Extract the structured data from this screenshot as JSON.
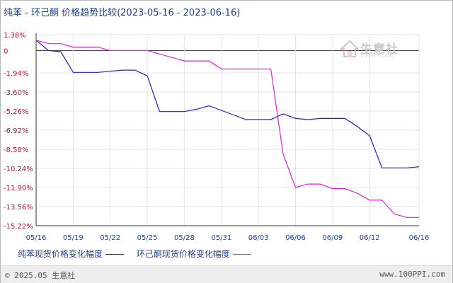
{
  "title": "纯苯 - 环己酮 价格趋势比较(2023-05-16 - 2023-06-16)",
  "watermark": {
    "brand": "生意社",
    "domain": "100PPI.COM"
  },
  "legend": {
    "items": [
      {
        "label": "纯苯现货价格变化幅度",
        "color": "#2020c8"
      },
      {
        "label": "环己酮现货价格变化幅度",
        "color": "#e020e0"
      }
    ]
  },
  "footer": {
    "copyright": "© 2025.05 生意社",
    "site": "www.100PPI.com"
  },
  "chart_data": {
    "type": "line",
    "title": "纯苯 - 环己酮 价格趋势比较(2023-05-16 - 2023-06-16)",
    "xlabel": "",
    "ylabel": "",
    "x": [
      "05/16",
      "05/17",
      "05/18",
      "05/19",
      "05/20",
      "05/21",
      "05/22",
      "05/23",
      "05/24",
      "05/25",
      "05/26",
      "05/27",
      "05/28",
      "05/29",
      "05/30",
      "05/31",
      "06/01",
      "06/02",
      "06/03",
      "06/04",
      "06/05",
      "06/06",
      "06/07",
      "06/08",
      "06/09",
      "06/10",
      "06/11",
      "06/12",
      "06/13",
      "06/14",
      "06/15",
      "06/16"
    ],
    "x_tick_labels": [
      "05/16",
      "05/19",
      "05/22",
      "05/25",
      "05/28",
      "05/31",
      "06/03",
      "06/06",
      "06/09",
      "06/12",
      "06/16"
    ],
    "y_tick_labels": [
      "1.38%",
      "0",
      "-1.94%",
      "-3.60%",
      "-5.26%",
      "-6.92%",
      "-8.58%",
      "-10.24%",
      "-11.90%",
      "-13.56%",
      "-15.22%"
    ],
    "y_ticks": [
      1.38,
      0,
      -1.94,
      -3.6,
      -5.26,
      -6.92,
      -8.58,
      -10.24,
      -11.9,
      -13.56,
      -15.22
    ],
    "ylim": [
      -15.22,
      1.38
    ],
    "grid": true,
    "legend_position": "bottom",
    "series": [
      {
        "name": "纯苯现货价格变化幅度",
        "color": "#2020c8",
        "values": [
          0.9,
          0.0,
          -0.1,
          -1.9,
          -1.9,
          -1.9,
          -1.8,
          -1.7,
          -1.7,
          -2.2,
          -5.3,
          -5.3,
          -5.3,
          -5.1,
          -4.8,
          -5.2,
          -5.6,
          -6.0,
          -6.0,
          -6.0,
          -5.5,
          -5.9,
          -6.0,
          -5.9,
          -5.9,
          -5.9,
          -6.6,
          -7.4,
          -10.2,
          -10.2,
          -10.2,
          -10.1
        ]
      },
      {
        "name": "环己酮现货价格变化幅度",
        "color": "#e020e0",
        "values": [
          0.9,
          0.6,
          0.6,
          0.3,
          0.3,
          0.3,
          0.0,
          0.0,
          0.0,
          0.0,
          -0.3,
          -0.6,
          -0.9,
          -0.9,
          -0.9,
          -1.6,
          -1.6,
          -1.6,
          -1.6,
          -1.6,
          -9.0,
          -11.9,
          -11.6,
          -11.6,
          -12.0,
          -12.0,
          -12.4,
          -13.0,
          -13.0,
          -14.2,
          -14.5,
          -14.5
        ]
      }
    ]
  }
}
